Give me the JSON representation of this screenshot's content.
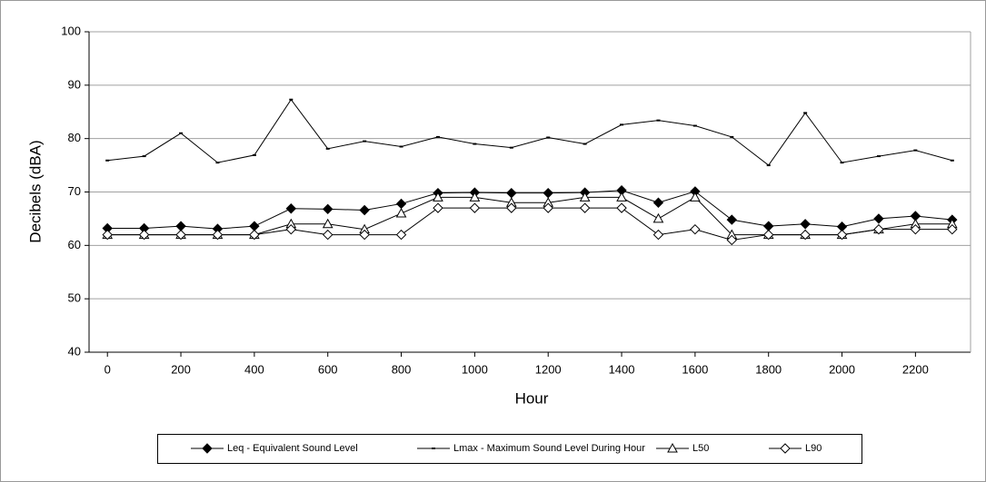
{
  "chart_data": {
    "type": "line",
    "xlabel": "Hour",
    "ylabel": "Decibels (dBA)",
    "x": [
      0,
      100,
      200,
      300,
      400,
      500,
      600,
      700,
      800,
      900,
      1000,
      1100,
      1200,
      1300,
      1400,
      1500,
      1600,
      1700,
      1800,
      1900,
      2000,
      2100,
      2200,
      2300
    ],
    "xlim": [
      -50,
      2350
    ],
    "xticks": [
      0,
      200,
      400,
      600,
      800,
      1000,
      1200,
      1400,
      1600,
      1800,
      2000,
      2200
    ],
    "ylim": [
      40,
      100
    ],
    "yticks": [
      40,
      50,
      60,
      70,
      80,
      90,
      100
    ],
    "grid": true,
    "legend": "bottom",
    "series": [
      {
        "name": "Leq - Equivalent Sound Level",
        "color": "#000000",
        "marker": "diamond-filled",
        "values": [
          63.2,
          63.2,
          63.6,
          63.1,
          63.6,
          66.9,
          66.8,
          66.6,
          67.8,
          69.8,
          69.9,
          69.8,
          69.8,
          69.9,
          70.3,
          68.0,
          70.1,
          64.8,
          63.6,
          64.0,
          63.5,
          65.0,
          65.5,
          64.8
        ]
      },
      {
        "name": "Lmax - Maximum Sound Level During Hour",
        "color": "#000000",
        "marker": "dash",
        "values": [
          75.9,
          76.7,
          81.0,
          75.5,
          76.9,
          87.3,
          78.1,
          79.5,
          78.5,
          80.3,
          79.0,
          78.3,
          80.2,
          79.0,
          82.6,
          83.4,
          82.4,
          80.3,
          75.0,
          84.8,
          75.5,
          76.7,
          77.8,
          75.9
        ]
      },
      {
        "name": "L50",
        "color": "#000000",
        "marker": "triangle-open",
        "values": [
          62,
          62,
          62,
          62,
          62,
          64,
          64,
          63,
          66,
          69,
          69,
          68,
          68,
          69,
          69,
          65,
          69,
          62,
          62,
          62,
          62,
          63,
          64,
          64
        ]
      },
      {
        "name": "L90",
        "color": "#000000",
        "marker": "diamond-open",
        "values": [
          62,
          62,
          62,
          62,
          62,
          63,
          62,
          62,
          62,
          67,
          67,
          67,
          67,
          67,
          67,
          62,
          63,
          61,
          62,
          62,
          62,
          63,
          63,
          63
        ]
      }
    ]
  }
}
